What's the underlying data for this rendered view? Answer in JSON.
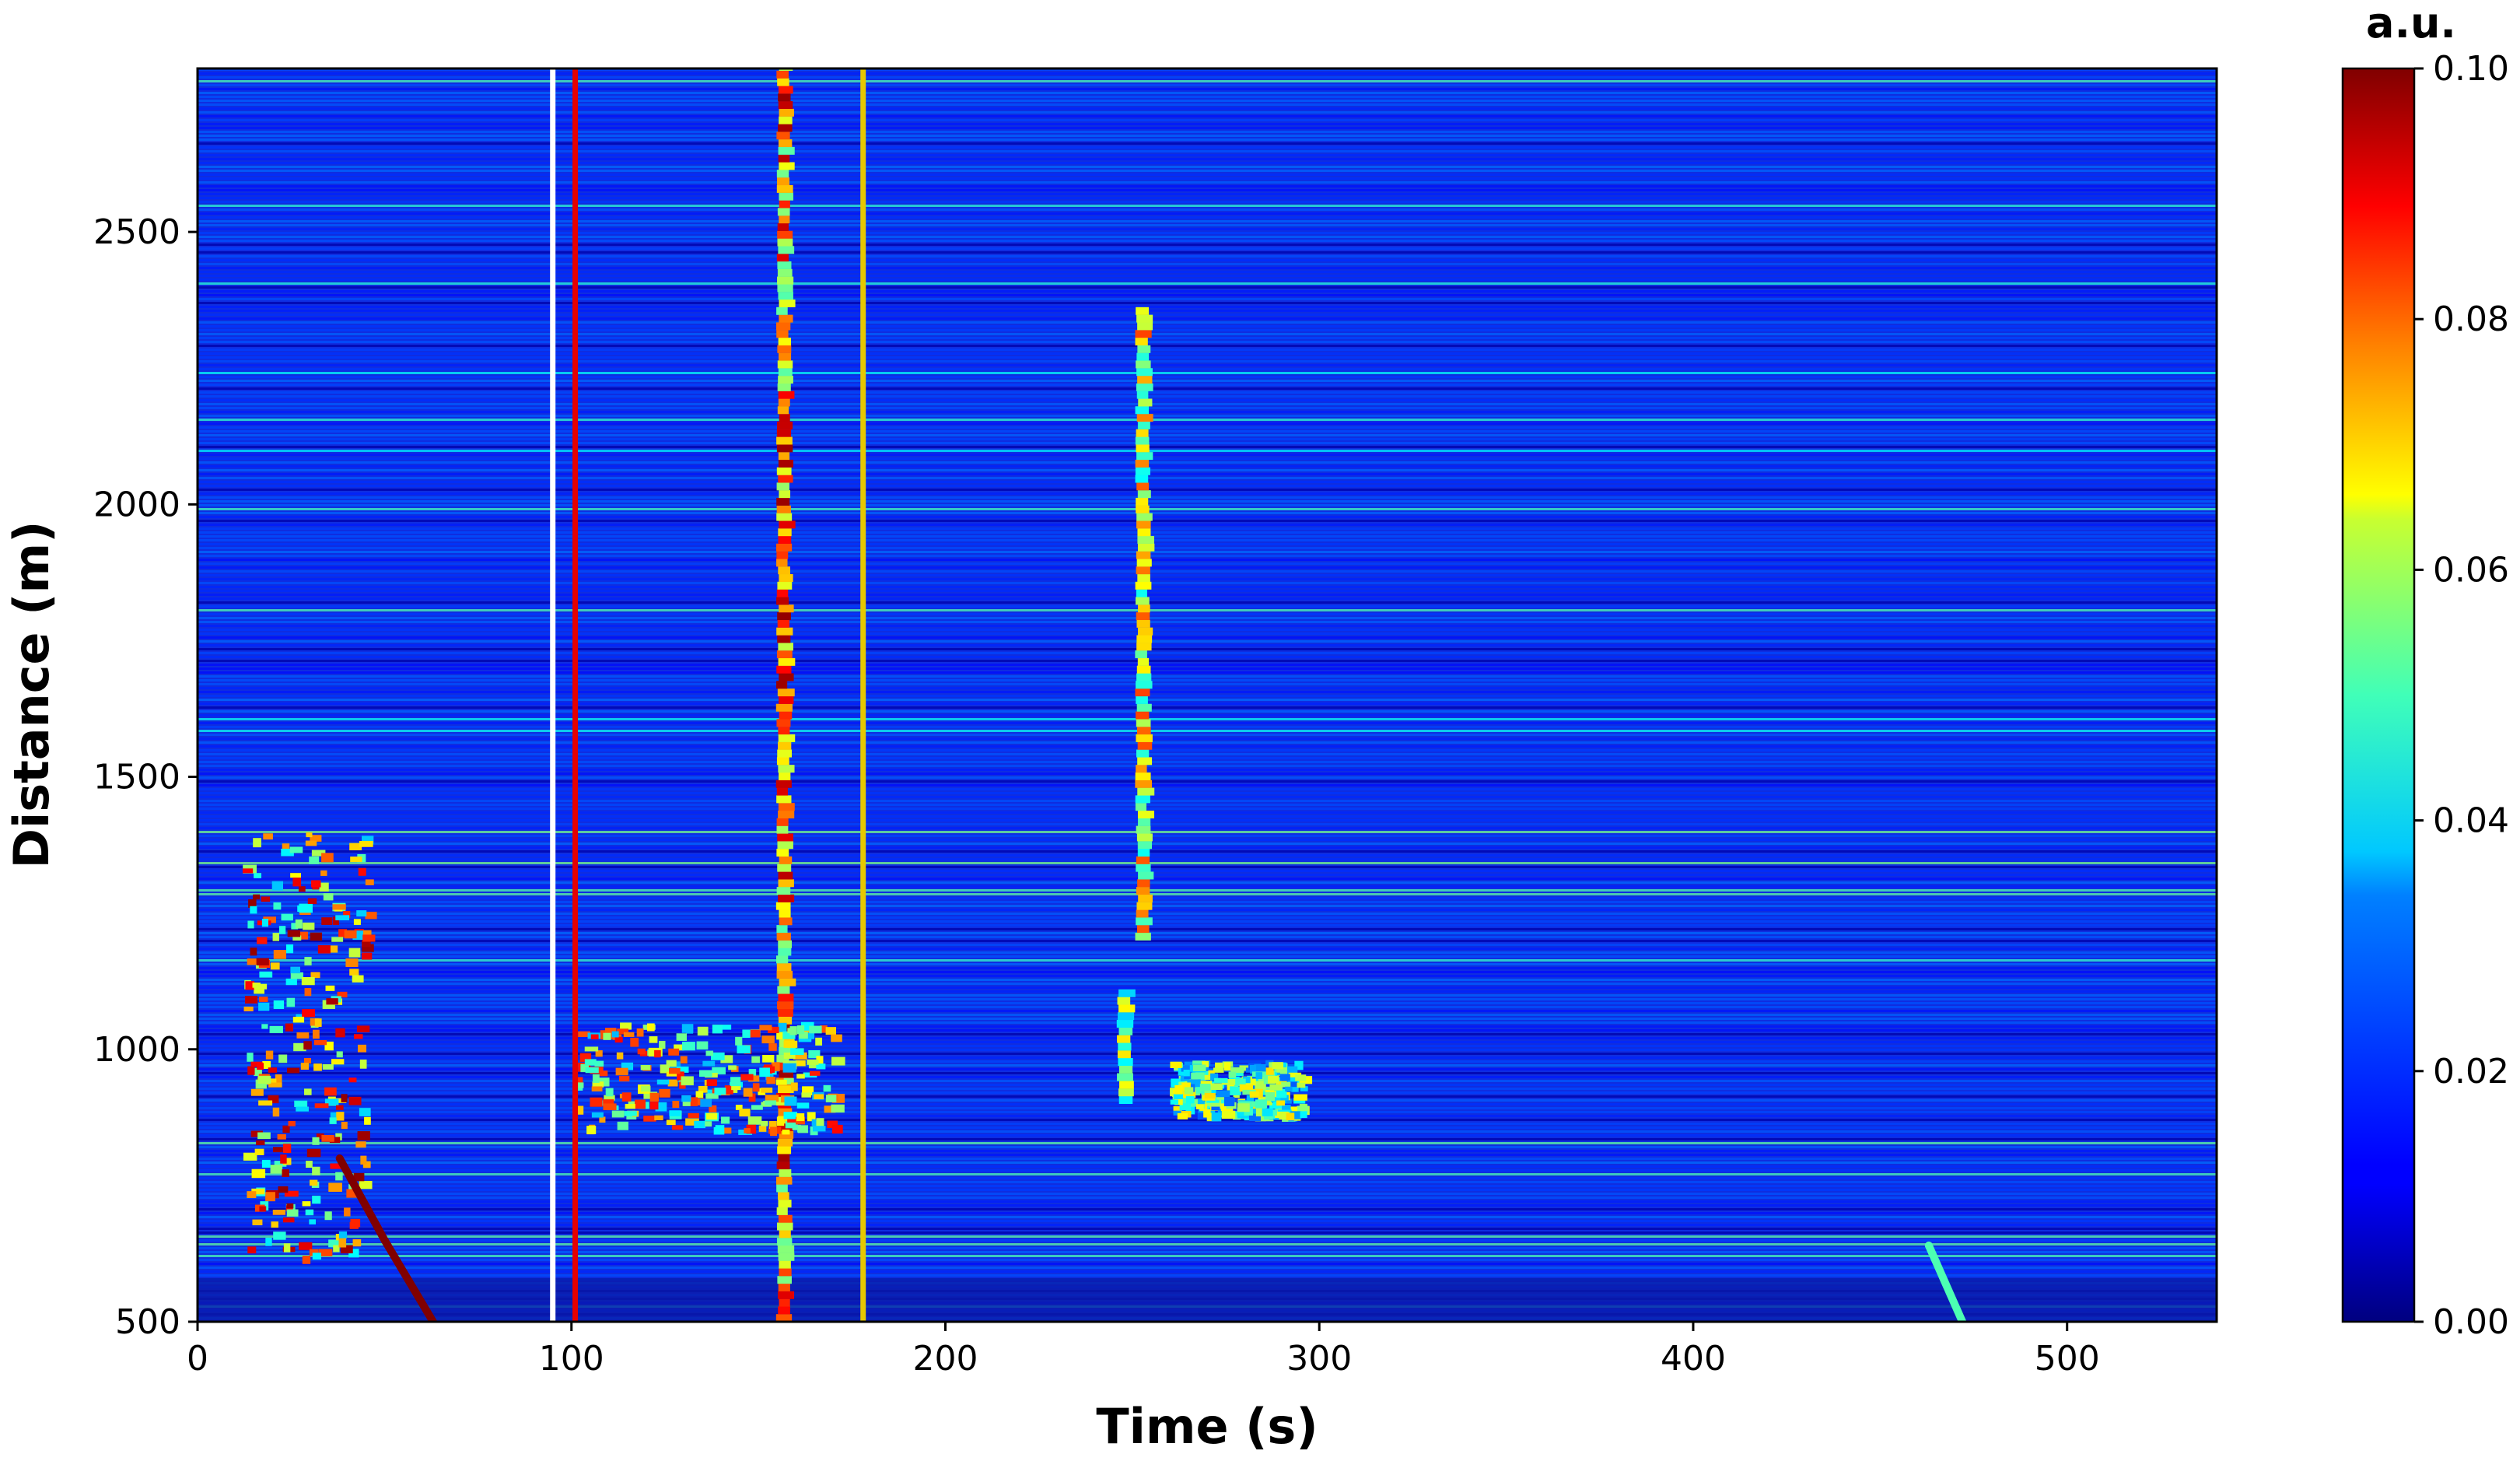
{
  "chart_data": {
    "type": "heatmap",
    "xlabel": "Time (s)",
    "ylabel": "Distance (m)",
    "xlim": [
      0,
      540
    ],
    "ylim": [
      500,
      2800
    ],
    "xticks": [
      0,
      100,
      200,
      300,
      400,
      500
    ],
    "yticks": [
      500,
      1000,
      1500,
      2000,
      2500
    ],
    "colorbar": {
      "label": "a.u.",
      "range": [
        0.0,
        0.1
      ],
      "ticks": [
        "0.00",
        "0.02",
        "0.04",
        "0.06",
        "0.08",
        "0.10"
      ],
      "colormap": "jet"
    },
    "markers": [
      {
        "time": 95,
        "color": "#ffffff"
      },
      {
        "time": 101,
        "color": "#e60000"
      },
      {
        "time": 178,
        "color": "#e6c800"
      }
    ],
    "events": [
      {
        "type": "column",
        "time": 157,
        "dmin": 500,
        "dmax": 2800,
        "intensity": 0.09
      },
      {
        "type": "column",
        "time": 253,
        "dmin": 1200,
        "dmax": 2350,
        "intensity": 0.075
      },
      {
        "type": "column",
        "time": 248,
        "dmin": 900,
        "dmax": 1100,
        "intensity": 0.06
      },
      {
        "type": "patch",
        "tmin": 12,
        "tmax": 45,
        "dmin": 620,
        "dmax": 1400,
        "intensity": 0.09
      },
      {
        "type": "patch",
        "tmin": 100,
        "tmax": 170,
        "dmin": 850,
        "dmax": 1050,
        "intensity": 0.08
      },
      {
        "type": "patch",
        "tmin": 260,
        "tmax": 295,
        "dmin": 880,
        "dmax": 980,
        "intensity": 0.06
      },
      {
        "type": "track",
        "points": [
          [
            38,
            800
          ],
          [
            50,
            650
          ],
          [
            63,
            500
          ]
        ],
        "intensity": 0.1
      },
      {
        "type": "track",
        "points": [
          [
            463,
            640
          ],
          [
            472,
            500
          ]
        ],
        "intensity": 0.045
      }
    ]
  }
}
